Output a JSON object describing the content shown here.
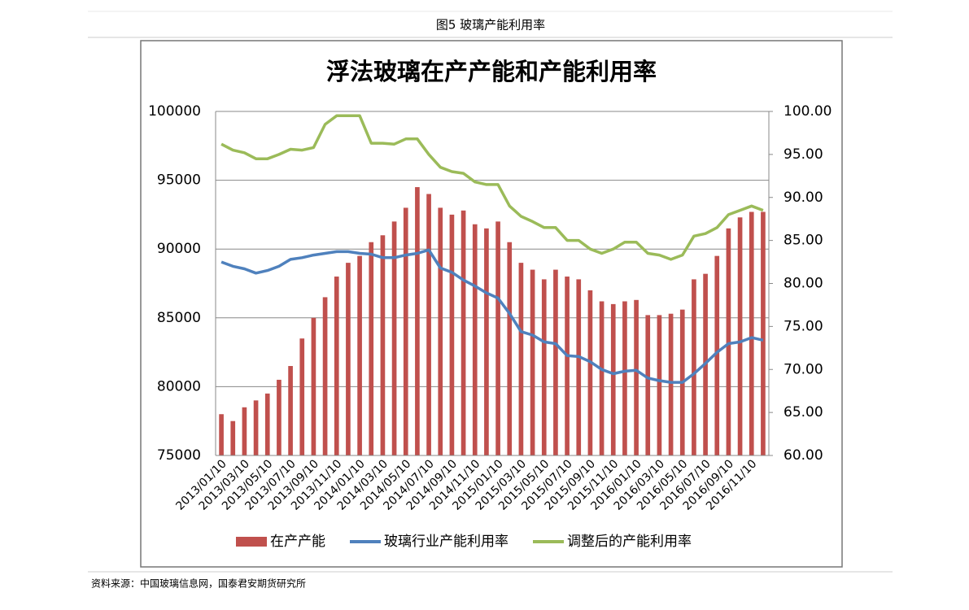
{
  "header": {
    "title": "图5 玻璃产能利用率"
  },
  "chart_data": {
    "type": "bar",
    "title": "浮法玻璃在产产能和产能利用率",
    "categories": [
      "2013/01/10",
      null,
      "2013/03/10",
      null,
      "2013/05/10",
      null,
      "2013/07/10",
      null,
      "2013/09/10",
      null,
      "2013/11/10",
      null,
      "2014/01/10",
      null,
      "2014/03/10",
      null,
      "2014/05/10",
      null,
      "2014/07/10",
      null,
      "2014/09/10",
      null,
      "2014/11/10",
      null,
      "2015/01/10",
      null,
      "2015/03/10",
      null,
      "2015/05/10",
      null,
      "2015/07/10",
      null,
      "2015/09/10",
      null,
      "2015/11/10",
      null,
      "2016/01/10",
      null,
      "2016/03/10",
      null,
      "2016/05/10",
      null,
      "2016/07/10",
      null,
      "2016/09/10",
      null,
      "2016/11/10",
      null
    ],
    "series": [
      {
        "name": "在产产能",
        "type": "bar",
        "color": "#c0504d",
        "values": [
          78000,
          77500,
          78500,
          79000,
          79500,
          80500,
          81500,
          83500,
          85000,
          86500,
          88000,
          89000,
          89500,
          90500,
          91000,
          92000,
          93000,
          94500,
          94000,
          93000,
          92500,
          92800,
          91800,
          91500,
          92000,
          90500,
          89000,
          88500,
          87800,
          88500,
          88000,
          87800,
          87000,
          86200,
          86000,
          86200,
          86300,
          85200,
          85200,
          85300,
          85600,
          87800,
          88200,
          89500,
          91500,
          92300,
          92700,
          92700
        ]
      },
      {
        "name": "玻璃行业产能利用率",
        "type": "line",
        "axis": "y2",
        "color": "#4f81bd",
        "values": [
          82.5,
          82.0,
          81.7,
          81.2,
          81.5,
          82.0,
          82.8,
          83.0,
          83.3,
          83.5,
          83.7,
          83.7,
          83.5,
          83.4,
          83.0,
          83.0,
          83.3,
          83.5,
          83.9,
          81.8,
          81.3,
          80.4,
          79.7,
          78.9,
          78.3,
          76.5,
          74.4,
          74.0,
          73.2,
          73.0,
          71.6,
          71.5,
          70.9,
          70.0,
          69.5,
          69.8,
          69.9,
          69.0,
          68.7,
          68.5,
          68.5,
          69.5,
          70.7,
          72.0,
          73.0,
          73.2,
          73.7,
          73.4
        ]
      },
      {
        "name": "调整后的产能利用率",
        "type": "line",
        "axis": "y2",
        "color": "#9bbb59",
        "values": [
          96.2,
          95.5,
          95.2,
          94.5,
          94.5,
          95.0,
          95.6,
          95.5,
          95.8,
          98.5,
          99.5,
          99.5,
          99.5,
          96.3,
          96.3,
          96.2,
          96.8,
          96.8,
          95.0,
          93.5,
          93.0,
          92.8,
          91.8,
          91.5,
          91.5,
          89.0,
          87.8,
          87.2,
          86.5,
          86.5,
          85.0,
          85.0,
          84.0,
          83.5,
          84.0,
          84.8,
          84.8,
          83.5,
          83.3,
          82.8,
          83.3,
          85.5,
          85.8,
          86.5,
          88.0,
          88.5,
          89.0,
          88.5
        ]
      }
    ],
    "ylim": [
      75000,
      100000
    ],
    "yticks": [
      75000,
      80000,
      85000,
      90000,
      95000,
      100000
    ],
    "y2lim": [
      60,
      100
    ],
    "y2ticks": [
      {
        "value": 60,
        "label": "60.00"
      },
      {
        "value": 65,
        "label": "65.00"
      },
      {
        "value": 70,
        "label": "70.00"
      },
      {
        "value": 75,
        "label": "75.00"
      },
      {
        "value": 80,
        "label": "80.00"
      },
      {
        "value": 85,
        "label": "85.00"
      },
      {
        "value": 90,
        "label": "90.00"
      },
      {
        "value": 95,
        "label": "95.00"
      },
      {
        "value": 100,
        "label": "100.00"
      }
    ],
    "grid": true,
    "legend": "bottom"
  },
  "footer": {
    "source": "资料来源：中国玻璃信息网，国泰君安期货研究所"
  }
}
